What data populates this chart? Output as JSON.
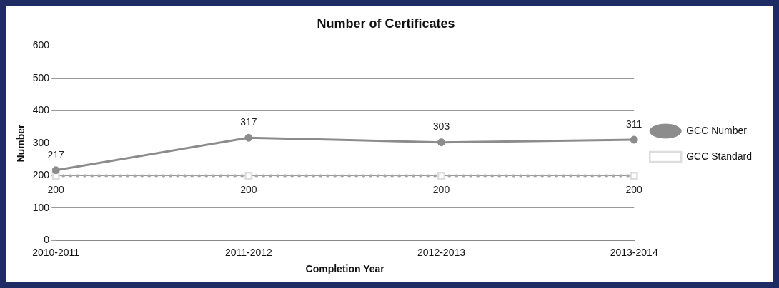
{
  "chart_data": {
    "type": "line",
    "title": "Number of Certificates",
    "xlabel": "Completion Year",
    "ylabel": "Number",
    "categories": [
      "2010-2011",
      "2011-2012",
      "2012-2013",
      "2013-2014"
    ],
    "series": [
      {
        "name": "GCC Number",
        "color": "#8c8c8c",
        "values": [
          217,
          317,
          303,
          311
        ],
        "marker": "circle",
        "line_style": "solid"
      },
      {
        "name": "GCC Standard",
        "color": "#a6a6a6",
        "values": [
          200,
          200,
          200,
          200
        ],
        "marker": "square",
        "line_style": "dotted"
      }
    ],
    "ylim": [
      0,
      600
    ],
    "yticks": [
      0,
      100,
      200,
      300,
      400,
      500,
      600
    ],
    "grid": "y",
    "legend": "right",
    "data_labels": true
  }
}
